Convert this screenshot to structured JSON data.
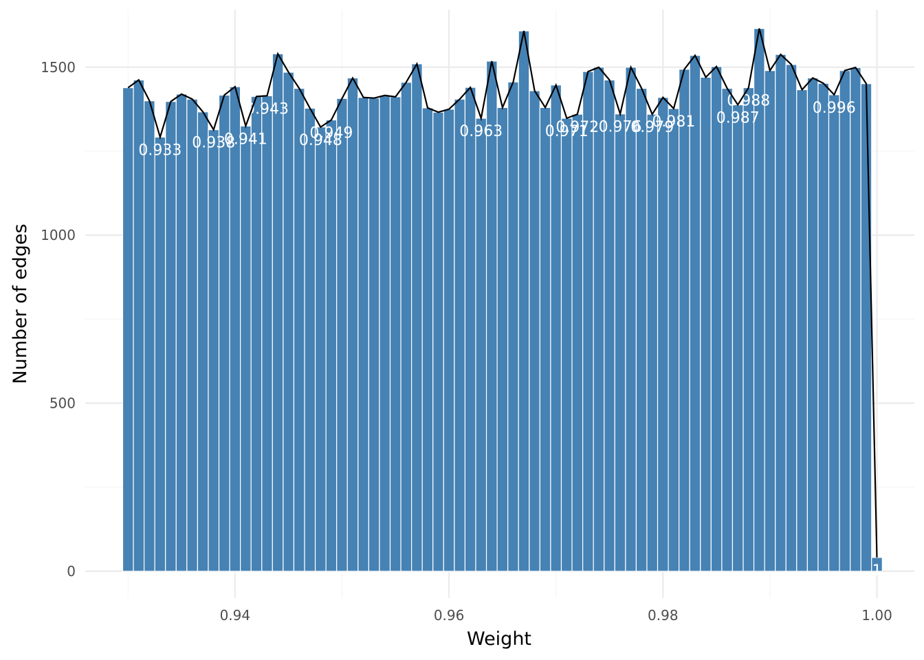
{
  "colors": {
    "bar_fill": "#4682b4",
    "bar_stroke": "#ffffff",
    "line": "#000000",
    "grid_major": "#ebebeb",
    "grid_minor": "#f4f4f4",
    "label_text": "#ffffff"
  },
  "chart_data": {
    "type": "bar",
    "title": "",
    "xlabel": "Weight",
    "ylabel": "Number of edges",
    "xlim": [
      0.926,
      1.0035
    ],
    "ylim": [
      -80,
      1700
    ],
    "x_ticks": [
      0.94,
      0.96,
      0.98,
      1.0
    ],
    "x_tick_labels": [
      "0.94",
      "0.96",
      "0.98",
      "1.00"
    ],
    "y_ticks": [
      0,
      500,
      1000,
      1500
    ],
    "y_tick_labels": [
      "0",
      "500",
      "1000",
      "1500"
    ],
    "grid": true,
    "legend": "none",
    "overlay": "line through bar tops",
    "categories": [
      "0.93",
      "0.931",
      "0.932",
      "0.933",
      "0.934",
      "0.935",
      "0.936",
      "0.937",
      "0.938",
      "0.939",
      "0.94",
      "0.941",
      "0.942",
      "0.943",
      "0.944",
      "0.945",
      "0.946",
      "0.947",
      "0.948",
      "0.949",
      "0.95",
      "0.951",
      "0.952",
      "0.953",
      "0.954",
      "0.955",
      "0.956",
      "0.957",
      "0.958",
      "0.959",
      "0.96",
      "0.961",
      "0.962",
      "0.963",
      "0.964",
      "0.965",
      "0.966",
      "0.967",
      "0.968",
      "0.969",
      "0.97",
      "0.971",
      "0.972",
      "0.973",
      "0.974",
      "0.975",
      "0.976",
      "0.977",
      "0.978",
      "0.979",
      "0.98",
      "0.981",
      "0.982",
      "0.983",
      "0.984",
      "0.985",
      "0.986",
      "0.987",
      "0.988",
      "0.989",
      "0.99",
      "0.991",
      "0.992",
      "0.993",
      "0.994",
      "0.995",
      "0.996",
      "0.997",
      "0.998",
      "0.999",
      "1"
    ],
    "x": [
      0.93,
      0.931,
      0.932,
      0.933,
      0.934,
      0.935,
      0.936,
      0.937,
      0.938,
      0.939,
      0.94,
      0.941,
      0.942,
      0.943,
      0.944,
      0.945,
      0.946,
      0.947,
      0.948,
      0.949,
      0.95,
      0.951,
      0.952,
      0.953,
      0.954,
      0.955,
      0.956,
      0.957,
      0.958,
      0.959,
      0.96,
      0.961,
      0.962,
      0.963,
      0.964,
      0.965,
      0.966,
      0.967,
      0.968,
      0.969,
      0.97,
      0.971,
      0.972,
      0.973,
      0.974,
      0.975,
      0.976,
      0.977,
      0.978,
      0.979,
      0.98,
      0.981,
      0.982,
      0.983,
      0.984,
      0.985,
      0.986,
      0.987,
      0.988,
      0.989,
      0.99,
      0.991,
      0.992,
      0.993,
      0.994,
      0.995,
      0.996,
      0.997,
      0.998,
      0.999,
      1.0
    ],
    "values": [
      1439,
      1462,
      1400,
      1292,
      1398,
      1420,
      1405,
      1367,
      1314,
      1417,
      1442,
      1325,
      1413,
      1415,
      1540,
      1485,
      1437,
      1378,
      1322,
      1343,
      1407,
      1468,
      1410,
      1408,
      1416,
      1412,
      1455,
      1510,
      1379,
      1366,
      1375,
      1405,
      1440,
      1348,
      1518,
      1380,
      1456,
      1608,
      1430,
      1380,
      1447,
      1348,
      1360,
      1487,
      1500,
      1462,
      1361,
      1500,
      1437,
      1360,
      1410,
      1377,
      1494,
      1535,
      1470,
      1502,
      1437,
      1388,
      1439,
      1615,
      1490,
      1538,
      1508,
      1433,
      1468,
      1452,
      1418,
      1490,
      1499,
      1451,
      41
    ],
    "label_annotations": [
      {
        "x": 0.933,
        "y": 1292,
        "text": "0.933"
      },
      {
        "x": 0.938,
        "y": 1314,
        "text": "0.938"
      },
      {
        "x": 0.941,
        "y": 1325,
        "text": "0.941"
      },
      {
        "x": 0.943,
        "y": 1415,
        "text": "0.943"
      },
      {
        "x": 0.948,
        "y": 1322,
        "text": "0.948"
      },
      {
        "x": 0.949,
        "y": 1343,
        "text": "0.949"
      },
      {
        "x": 0.963,
        "y": 1348,
        "text": "0.963"
      },
      {
        "x": 0.971,
        "y": 1348,
        "text": "0.971"
      },
      {
        "x": 0.972,
        "y": 1360,
        "text": "0.972"
      },
      {
        "x": 0.976,
        "y": 1361,
        "text": "0.976"
      },
      {
        "x": 0.979,
        "y": 1360,
        "text": "0.979"
      },
      {
        "x": 0.981,
        "y": 1377,
        "text": "0.981"
      },
      {
        "x": 0.987,
        "y": 1388,
        "text": "0.987"
      },
      {
        "x": 0.988,
        "y": 1439,
        "text": "0.988"
      },
      {
        "x": 0.996,
        "y": 1418,
        "text": "0.996"
      },
      {
        "x": 1.0,
        "y": 41,
        "text": "1"
      }
    ]
  }
}
